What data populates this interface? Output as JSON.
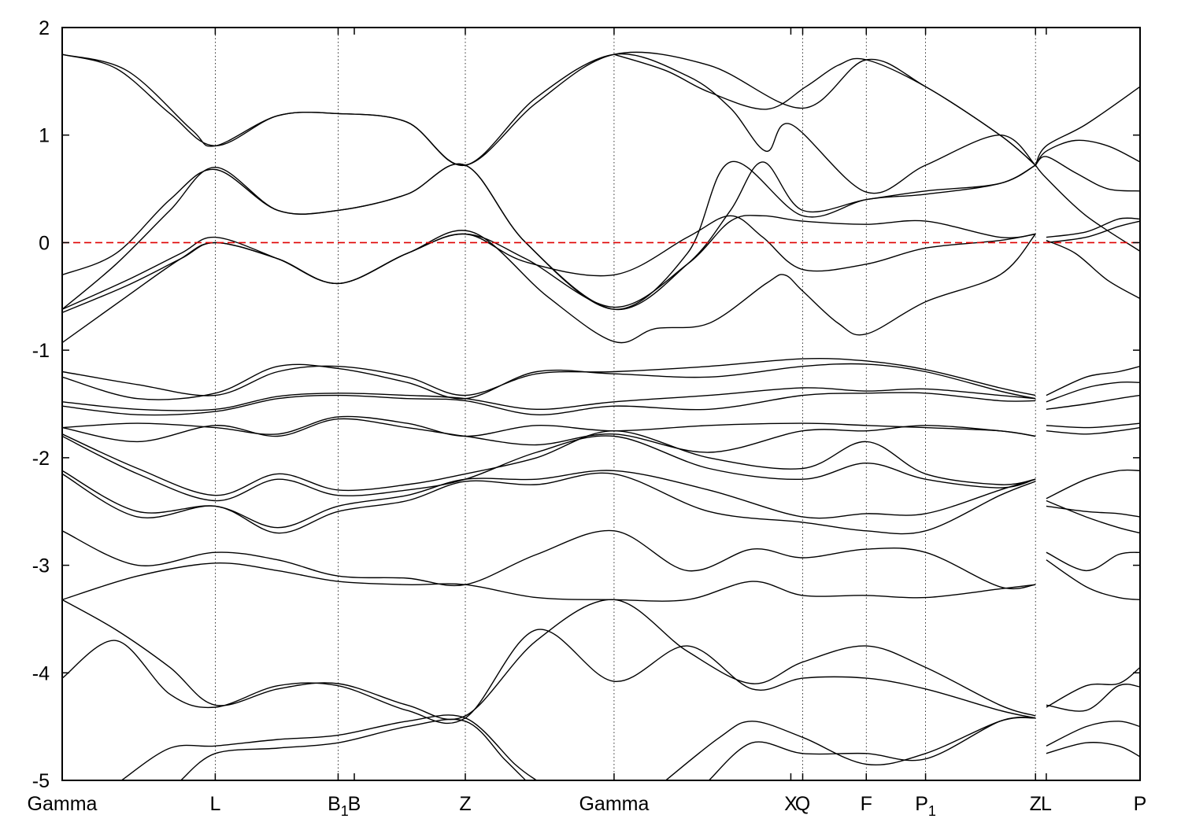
{
  "chart_data": {
    "type": "line",
    "title": "",
    "xlabel": "",
    "ylabel": "",
    "ylim": [
      -5,
      2
    ],
    "yticks": [
      2,
      1,
      0,
      -1,
      -2,
      -3,
      -4,
      -5
    ],
    "ytick_labels": [
      "2",
      "1",
      "0",
      "-1",
      "-2",
      "-3",
      "-4",
      "-5"
    ],
    "grid": "dotted vertical lines at high-symmetry points",
    "reference_line": {
      "y": 0,
      "color": "#e00000",
      "style": "dashed"
    },
    "kpoints": [
      {
        "x": 0.0,
        "label": "Gamma"
      },
      {
        "x": 0.142,
        "label": "L"
      },
      {
        "x": 0.256,
        "label": "B",
        "sub": "1"
      },
      {
        "x": 0.271,
        "label": "B"
      },
      {
        "x": 0.374,
        "label": "Z"
      },
      {
        "x": 0.512,
        "label": "Gamma"
      },
      {
        "x": 0.676,
        "label": "X"
      },
      {
        "x": 0.687,
        "label": "Q"
      },
      {
        "x": 0.746,
        "label": "F"
      },
      {
        "x": 0.801,
        "label": "P",
        "sub": "1"
      },
      {
        "x": 0.903,
        "label": "Z"
      },
      {
        "x": 0.913,
        "label": "L"
      },
      {
        "x": 1.0,
        "label": "P"
      }
    ],
    "vlines": [
      0.142,
      0.256,
      0.374,
      0.512,
      0.687,
      0.746,
      0.801,
      0.903
    ],
    "line_color": "#000000",
    "bands": [
      {
        "x": [
          0,
          0.05,
          0.1,
          0.142,
          0.2,
          0.256,
          0.32,
          0.374,
          0.44,
          0.512,
          0.58,
          0.62,
          0.653,
          0.676,
          0.746,
          0.801,
          0.87,
          0.903
        ],
        "y": [
          1.75,
          1.62,
          1.2,
          0.9,
          1.18,
          1.2,
          1.12,
          0.72,
          1.35,
          1.75,
          1.55,
          1.25,
          0.85,
          1.1,
          0.47,
          0.72,
          1.0,
          0.72
        ]
      },
      {
        "x": [
          0,
          0.06,
          0.12,
          0.142,
          0.2,
          0.256,
          0.32,
          0.374,
          0.44,
          0.512,
          0.6,
          0.687,
          0.746,
          0.801,
          0.87,
          0.903
        ],
        "y": [
          1.75,
          1.6,
          1.05,
          0.9,
          1.18,
          1.2,
          1.12,
          0.72,
          1.3,
          1.75,
          1.65,
          1.25,
          1.7,
          1.45,
          1.0,
          0.72
        ]
      },
      {
        "x": [
          0.512,
          0.56,
          0.6,
          0.653,
          0.69,
          0.72,
          0.746,
          0.801,
          0.87,
          0.903
        ],
        "y": [
          1.75,
          1.6,
          1.4,
          1.24,
          1.45,
          1.65,
          1.7,
          1.45,
          1.0,
          0.72
        ]
      },
      {
        "x": [
          0,
          0.05,
          0.1,
          0.142,
          0.2,
          0.256,
          0.32,
          0.374,
          0.43,
          0.512,
          0.58,
          0.62,
          0.65,
          0.687,
          0.746,
          0.801,
          0.87,
          0.903
        ],
        "y": [
          -0.3,
          -0.1,
          0.4,
          0.68,
          0.3,
          0.3,
          0.45,
          0.72,
          0.0,
          -0.62,
          -0.2,
          0.3,
          0.75,
          0.3,
          0.4,
          0.48,
          0.55,
          0.72
        ]
      },
      {
        "x": [
          0,
          0.05,
          0.1,
          0.142,
          0.2,
          0.256,
          0.32,
          0.374,
          0.43,
          0.512,
          0.58,
          0.62,
          0.687,
          0.746,
          0.801,
          0.87,
          0.903
        ],
        "y": [
          -0.62,
          -0.2,
          0.3,
          0.7,
          0.3,
          0.3,
          0.45,
          0.72,
          0.0,
          -0.62,
          -0.1,
          0.75,
          0.25,
          0.4,
          0.45,
          0.55,
          0.72
        ]
      },
      {
        "x": [
          0,
          0.06,
          0.11,
          0.142,
          0.2,
          0.256,
          0.32,
          0.374,
          0.43,
          0.512,
          0.58,
          0.62,
          0.65,
          0.687,
          0.746,
          0.801,
          0.87,
          0.903
        ],
        "y": [
          -0.62,
          -0.35,
          -0.1,
          0.05,
          -0.15,
          -0.38,
          -0.1,
          0.08,
          -0.15,
          -0.6,
          -0.2,
          0.2,
          0.25,
          0.2,
          0.17,
          0.2,
          0.05,
          0.08
        ]
      },
      {
        "x": [
          0,
          0.06,
          0.11,
          0.142,
          0.2,
          0.256,
          0.32,
          0.374,
          0.43,
          0.512,
          0.58,
          0.62,
          0.65,
          0.687,
          0.746,
          0.801,
          0.87,
          0.903
        ],
        "y": [
          -0.65,
          -0.4,
          -0.15,
          0.0,
          -0.15,
          -0.38,
          -0.1,
          0.08,
          -0.18,
          -0.3,
          0.05,
          0.25,
          0.05,
          -0.25,
          -0.2,
          -0.05,
          0.02,
          0.08
        ]
      },
      {
        "x": [
          0,
          0.06,
          0.11,
          0.142,
          0.2,
          0.256,
          0.32,
          0.38,
          0.45,
          0.512,
          0.55,
          0.6,
          0.653,
          0.67,
          0.687,
          0.72,
          0.746,
          0.801,
          0.87,
          0.903
        ],
        "y": [
          -0.93,
          -0.5,
          -0.15,
          0.0,
          -0.15,
          -0.38,
          -0.1,
          0.1,
          -0.5,
          -0.92,
          -0.8,
          -0.75,
          -0.38,
          -0.3,
          -0.45,
          -0.75,
          -0.85,
          -0.55,
          -0.3,
          0.08
        ]
      },
      {
        "x": [
          0.903,
          0.913,
          0.95,
          1.0
        ],
        "y": [
          0.72,
          0.9,
          1.1,
          1.45
        ]
      },
      {
        "x": [
          0.903,
          0.913,
          0.94,
          0.97,
          1.0
        ],
        "y": [
          0.72,
          0.85,
          0.95,
          0.9,
          0.75
        ]
      },
      {
        "x": [
          0.903,
          0.913,
          0.94,
          0.97,
          1.0
        ],
        "y": [
          0.72,
          0.8,
          0.65,
          0.5,
          0.48
        ]
      },
      {
        "x": [
          0.903,
          0.913,
          0.95,
          1.0
        ],
        "y": [
          0.72,
          0.6,
          0.25,
          -0.08
        ]
      },
      {
        "x": [
          0.913,
          0.95,
          0.98,
          1.0
        ],
        "y": [
          0.05,
          0.1,
          0.22,
          0.22
        ]
      },
      {
        "x": [
          0.913,
          0.95,
          0.98,
          1.0
        ],
        "y": [
          0.0,
          0.05,
          0.15,
          0.2
        ]
      },
      {
        "x": [
          0.913,
          0.94,
          0.97,
          1.0
        ],
        "y": [
          0.02,
          -0.1,
          -0.35,
          -0.52
        ]
      },
      {
        "x": [
          0,
          0.07,
          0.142,
          0.2,
          0.256,
          0.32,
          0.374,
          0.44,
          0.512,
          0.6,
          0.687,
          0.746,
          0.801,
          0.87,
          0.903
        ],
        "y": [
          -1.2,
          -1.32,
          -1.42,
          -1.2,
          -1.15,
          -1.25,
          -1.42,
          -1.22,
          -1.2,
          -1.15,
          -1.08,
          -1.1,
          -1.18,
          -1.35,
          -1.42
        ]
      },
      {
        "x": [
          0,
          0.07,
          0.142,
          0.2,
          0.256,
          0.32,
          0.374,
          0.44,
          0.512,
          0.6,
          0.687,
          0.746,
          0.801,
          0.87,
          0.903
        ],
        "y": [
          -1.25,
          -1.45,
          -1.4,
          -1.15,
          -1.17,
          -1.3,
          -1.45,
          -1.2,
          -1.22,
          -1.25,
          -1.15,
          -1.13,
          -1.2,
          -1.38,
          -1.45
        ]
      },
      {
        "x": [
          0,
          0.07,
          0.142,
          0.2,
          0.256,
          0.32,
          0.374,
          0.44,
          0.512,
          0.6,
          0.687,
          0.746,
          0.801,
          0.87,
          0.903
        ],
        "y": [
          -1.48,
          -1.55,
          -1.55,
          -1.43,
          -1.4,
          -1.42,
          -1.45,
          -1.55,
          -1.48,
          -1.42,
          -1.35,
          -1.38,
          -1.36,
          -1.42,
          -1.45
        ]
      },
      {
        "x": [
          0,
          0.07,
          0.142,
          0.2,
          0.256,
          0.32,
          0.374,
          0.44,
          0.512,
          0.6,
          0.687,
          0.746,
          0.801,
          0.87,
          0.903
        ],
        "y": [
          -1.52,
          -1.6,
          -1.57,
          -1.45,
          -1.42,
          -1.45,
          -1.47,
          -1.6,
          -1.52,
          -1.55,
          -1.42,
          -1.4,
          -1.4,
          -1.47,
          -1.47
        ]
      },
      {
        "x": [
          0,
          0.07,
          0.142,
          0.2,
          0.256,
          0.32,
          0.374,
          0.44,
          0.512,
          0.6,
          0.687,
          0.746,
          0.801,
          0.87,
          0.903
        ],
        "y": [
          -1.72,
          -1.68,
          -1.72,
          -1.78,
          -1.62,
          -1.68,
          -1.8,
          -1.7,
          -1.75,
          -1.7,
          -1.68,
          -1.7,
          -1.72,
          -1.75,
          -1.8
        ]
      },
      {
        "x": [
          0,
          0.07,
          0.142,
          0.2,
          0.256,
          0.32,
          0.374,
          0.44,
          0.512,
          0.6,
          0.687,
          0.746,
          0.801,
          0.87,
          0.903
        ],
        "y": [
          -1.72,
          -1.85,
          -1.7,
          -1.8,
          -1.64,
          -1.72,
          -1.8,
          -1.88,
          -1.78,
          -1.95,
          -1.75,
          -1.75,
          -1.7,
          -1.75,
          -1.8
        ]
      },
      {
        "x": [
          0,
          0.07,
          0.142,
          0.2,
          0.256,
          0.32,
          0.374,
          0.44,
          0.512,
          0.6,
          0.687,
          0.746,
          0.801,
          0.87,
          0.903
        ],
        "y": [
          -1.78,
          -2.1,
          -2.35,
          -2.15,
          -2.3,
          -2.25,
          -2.15,
          -2.0,
          -1.75,
          -2.0,
          -2.1,
          -1.85,
          -2.15,
          -2.25,
          -2.2
        ]
      },
      {
        "x": [
          0,
          0.07,
          0.142,
          0.2,
          0.256,
          0.32,
          0.374,
          0.44,
          0.512,
          0.6,
          0.687,
          0.746,
          0.801,
          0.87,
          0.903
        ],
        "y": [
          -1.8,
          -2.15,
          -2.4,
          -2.2,
          -2.35,
          -2.3,
          -2.2,
          -1.95,
          -1.8,
          -2.1,
          -2.2,
          -2.05,
          -2.2,
          -2.28,
          -2.2
        ]
      },
      {
        "x": [
          0,
          0.07,
          0.142,
          0.2,
          0.256,
          0.32,
          0.374,
          0.44,
          0.512,
          0.6,
          0.687,
          0.746,
          0.801,
          0.87,
          0.903
        ],
        "y": [
          -2.12,
          -2.5,
          -2.45,
          -2.65,
          -2.45,
          -2.35,
          -2.2,
          -2.2,
          -2.12,
          -2.3,
          -2.55,
          -2.52,
          -2.52,
          -2.3,
          -2.2
        ]
      },
      {
        "x": [
          0,
          0.07,
          0.142,
          0.2,
          0.256,
          0.32,
          0.374,
          0.44,
          0.512,
          0.6,
          0.687,
          0.746,
          0.801,
          0.87,
          0.903
        ],
        "y": [
          -2.15,
          -2.55,
          -2.45,
          -2.7,
          -2.5,
          -2.4,
          -2.22,
          -2.25,
          -2.15,
          -2.5,
          -2.6,
          -2.68,
          -2.68,
          -2.35,
          -2.22
        ]
      },
      {
        "x": [
          0,
          0.07,
          0.142,
          0.2,
          0.256,
          0.32,
          0.374,
          0.44,
          0.512,
          0.58,
          0.64,
          0.687,
          0.746,
          0.801,
          0.87,
          0.903
        ],
        "y": [
          -2.68,
          -3.0,
          -2.88,
          -2.95,
          -3.1,
          -3.12,
          -3.18,
          -2.9,
          -2.68,
          -3.05,
          -2.85,
          -2.93,
          -2.85,
          -2.88,
          -3.2,
          -3.18
        ]
      },
      {
        "x": [
          0,
          0.07,
          0.142,
          0.2,
          0.256,
          0.32,
          0.374,
          0.44,
          0.512,
          0.58,
          0.64,
          0.687,
          0.746,
          0.801,
          0.87,
          0.903
        ],
        "y": [
          -3.32,
          -3.1,
          -2.98,
          -3.05,
          -3.15,
          -3.18,
          -3.18,
          -3.3,
          -3.32,
          -3.32,
          -3.15,
          -3.28,
          -3.28,
          -3.3,
          -3.22,
          -3.18
        ]
      },
      {
        "x": [
          0,
          0.05,
          0.1,
          0.142,
          0.2,
          0.256,
          0.32,
          0.374,
          0.44,
          0.512,
          0.58,
          0.64,
          0.687,
          0.746,
          0.801,
          0.87,
          0.903
        ],
        "y": [
          -3.32,
          -3.6,
          -3.95,
          -4.3,
          -4.15,
          -4.1,
          -4.3,
          -4.4,
          -3.7,
          -3.32,
          -3.8,
          -4.1,
          -3.9,
          -3.75,
          -3.95,
          -4.3,
          -4.4
        ]
      },
      {
        "x": [
          0,
          0.05,
          0.1,
          0.142,
          0.2,
          0.256,
          0.32,
          0.374,
          0.44,
          0.512,
          0.58,
          0.64,
          0.687,
          0.746,
          0.801,
          0.87,
          0.903
        ],
        "y": [
          -4.05,
          -3.7,
          -4.2,
          -4.32,
          -4.12,
          -4.12,
          -4.35,
          -4.42,
          -3.6,
          -4.08,
          -3.75,
          -4.15,
          -4.05,
          -4.05,
          -4.15,
          -4.35,
          -4.42
        ]
      },
      {
        "x": [
          0.055,
          0.1,
          0.142,
          0.2,
          0.256,
          0.32,
          0.374,
          0.42,
          0.44
        ],
        "y": [
          -5.0,
          -4.7,
          -4.68,
          -4.62,
          -4.58,
          -4.45,
          -4.42,
          -4.85,
          -5.0
        ]
      },
      {
        "x": [
          0.11,
          0.142,
          0.2,
          0.256,
          0.32,
          0.374,
          0.41,
          0.43
        ],
        "y": [
          -5.0,
          -4.75,
          -4.7,
          -4.65,
          -4.5,
          -4.45,
          -4.8,
          -5.0
        ]
      },
      {
        "x": [
          0.56,
          0.61,
          0.64,
          0.687,
          0.746,
          0.801,
          0.87,
          0.903
        ],
        "y": [
          -5.0,
          -4.6,
          -4.45,
          -4.6,
          -4.85,
          -4.75,
          -4.45,
          -4.42
        ]
      },
      {
        "x": [
          0.6,
          0.64,
          0.687,
          0.746,
          0.801,
          0.87,
          0.903
        ],
        "y": [
          -5.0,
          -4.65,
          -4.75,
          -4.75,
          -4.8,
          -4.45,
          -4.42
        ]
      },
      {
        "x": [
          0.913,
          0.95,
          0.98,
          1.0
        ],
        "y": [
          -1.42,
          -1.25,
          -1.2,
          -1.15
        ]
      },
      {
        "x": [
          0.913,
          0.95,
          0.98,
          1.0
        ],
        "y": [
          -1.48,
          -1.35,
          -1.3,
          -1.3
        ]
      },
      {
        "x": [
          0.913,
          0.95,
          0.98,
          1.0
        ],
        "y": [
          -1.55,
          -1.5,
          -1.45,
          -1.42
        ]
      },
      {
        "x": [
          0.913,
          0.95,
          0.98,
          1.0
        ],
        "y": [
          -1.7,
          -1.72,
          -1.7,
          -1.68
        ]
      },
      {
        "x": [
          0.913,
          0.95,
          0.98,
          1.0
        ],
        "y": [
          -1.75,
          -1.78,
          -1.75,
          -1.72
        ]
      },
      {
        "x": [
          0.913,
          0.95,
          0.98,
          1.0
        ],
        "y": [
          -2.38,
          -2.2,
          -2.12,
          -2.12
        ]
      },
      {
        "x": [
          0.913,
          0.95,
          0.98,
          1.0
        ],
        "y": [
          -2.45,
          -2.5,
          -2.52,
          -2.55
        ]
      },
      {
        "x": [
          0.913,
          0.95,
          0.98,
          1.0
        ],
        "y": [
          -2.4,
          -2.55,
          -2.65,
          -2.7
        ]
      },
      {
        "x": [
          0.913,
          0.95,
          0.98,
          1.0
        ],
        "y": [
          -2.88,
          -3.05,
          -2.9,
          -2.88
        ]
      },
      {
        "x": [
          0.913,
          0.95,
          0.98,
          1.0
        ],
        "y": [
          -2.95,
          -3.2,
          -3.3,
          -3.32
        ]
      },
      {
        "x": [
          0.913,
          0.95,
          0.98,
          1.0
        ],
        "y": [
          -4.32,
          -4.12,
          -4.1,
          -3.95
        ]
      },
      {
        "x": [
          0.913,
          0.95,
          0.98,
          1.0
        ],
        "y": [
          -4.3,
          -4.35,
          -4.12,
          -4.13
        ]
      },
      {
        "x": [
          0.913,
          0.95,
          0.98,
          1.0
        ],
        "y": [
          -4.68,
          -4.5,
          -4.45,
          -4.5
        ]
      },
      {
        "x": [
          0.913,
          0.95,
          0.98,
          1.0
        ],
        "y": [
          -4.75,
          -4.65,
          -4.68,
          -4.78
        ]
      }
    ]
  }
}
